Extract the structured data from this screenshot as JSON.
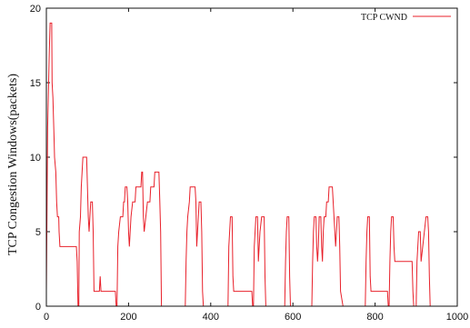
{
  "chart_data": {
    "type": "line",
    "title": "",
    "xlabel": "",
    "ylabel": "TCP Congestion Windows(packets)",
    "xlim": [
      0,
      1000
    ],
    "ylim": [
      0,
      20
    ],
    "x_ticks": [
      "0",
      "200",
      "400",
      "600",
      "800",
      "1000"
    ],
    "y_ticks": [
      "0",
      "5",
      "10",
      "15",
      "20"
    ],
    "grid": false,
    "legend_position": "top-right",
    "series": [
      {
        "name": "TCP CWND",
        "color": "#e8202a",
        "points": [
          [
            0,
            1
          ],
          [
            3,
            12
          ],
          [
            7,
            17
          ],
          [
            9,
            19
          ],
          [
            13,
            19
          ],
          [
            14,
            15
          ],
          [
            16,
            14
          ],
          [
            19,
            11
          ],
          [
            20,
            10
          ],
          [
            23,
            9
          ],
          [
            25,
            7
          ],
          [
            27,
            6
          ],
          [
            30,
            6
          ],
          [
            31,
            5
          ],
          [
            33,
            4
          ],
          [
            73,
            4
          ],
          [
            75,
            3
          ],
          [
            77,
            0
          ],
          [
            79,
            0
          ],
          [
            80,
            5
          ],
          [
            83,
            6
          ],
          [
            85,
            8
          ],
          [
            87,
            9
          ],
          [
            89,
            10
          ],
          [
            98,
            10
          ],
          [
            100,
            8
          ],
          [
            102,
            6
          ],
          [
            104,
            5
          ],
          [
            106,
            6
          ],
          [
            108,
            7
          ],
          [
            112,
            7
          ],
          [
            114,
            5
          ],
          [
            116,
            1
          ],
          [
            129,
            1
          ],
          [
            131,
            2
          ],
          [
            133,
            1
          ],
          [
            168,
            1
          ],
          [
            170,
            0
          ],
          [
            172,
            0
          ],
          [
            174,
            4
          ],
          [
            176,
            5
          ],
          [
            180,
            6
          ],
          [
            186,
            6
          ],
          [
            188,
            7
          ],
          [
            190,
            7
          ],
          [
            192,
            8
          ],
          [
            196,
            8
          ],
          [
            198,
            7
          ],
          [
            200,
            5
          ],
          [
            202,
            4
          ],
          [
            204,
            5
          ],
          [
            206,
            6
          ],
          [
            210,
            7
          ],
          [
            216,
            7
          ],
          [
            218,
            8
          ],
          [
            230,
            8
          ],
          [
            232,
            9
          ],
          [
            234,
            9
          ],
          [
            236,
            6
          ],
          [
            238,
            5
          ],
          [
            242,
            6
          ],
          [
            246,
            7
          ],
          [
            252,
            7
          ],
          [
            254,
            8
          ],
          [
            262,
            8
          ],
          [
            264,
            9
          ],
          [
            274,
            9
          ],
          [
            276,
            7
          ],
          [
            278,
            5
          ],
          [
            280,
            0
          ],
          [
            338,
            0
          ],
          [
            340,
            3
          ],
          [
            342,
            5
          ],
          [
            344,
            6
          ],
          [
            348,
            7
          ],
          [
            350,
            8
          ],
          [
            362,
            8
          ],
          [
            364,
            7
          ],
          [
            366,
            4
          ],
          [
            368,
            5
          ],
          [
            370,
            6
          ],
          [
            372,
            7
          ],
          [
            376,
            7
          ],
          [
            378,
            5
          ],
          [
            380,
            1
          ],
          [
            382,
            0
          ],
          [
            442,
            0
          ],
          [
            444,
            4
          ],
          [
            446,
            5
          ],
          [
            448,
            6
          ],
          [
            452,
            6
          ],
          [
            454,
            2
          ],
          [
            456,
            1
          ],
          [
            500,
            1
          ],
          [
            502,
            0
          ],
          [
            504,
            0
          ],
          [
            506,
            4
          ],
          [
            508,
            5
          ],
          [
            510,
            6
          ],
          [
            514,
            6
          ],
          [
            516,
            3
          ],
          [
            518,
            4
          ],
          [
            520,
            5
          ],
          [
            524,
            6
          ],
          [
            530,
            6
          ],
          [
            532,
            2
          ],
          [
            534,
            0
          ],
          [
            580,
            0
          ],
          [
            582,
            3
          ],
          [
            584,
            5
          ],
          [
            586,
            6
          ],
          [
            590,
            6
          ],
          [
            592,
            2
          ],
          [
            594,
            0
          ],
          [
            646,
            0
          ],
          [
            648,
            3
          ],
          [
            650,
            5
          ],
          [
            652,
            6
          ],
          [
            656,
            6
          ],
          [
            658,
            4
          ],
          [
            660,
            3
          ],
          [
            662,
            4
          ],
          [
            664,
            6
          ],
          [
            668,
            6
          ],
          [
            670,
            4
          ],
          [
            672,
            3
          ],
          [
            674,
            5
          ],
          [
            676,
            6
          ],
          [
            680,
            6
          ],
          [
            682,
            7
          ],
          [
            686,
            7
          ],
          [
            688,
            8
          ],
          [
            696,
            8
          ],
          [
            698,
            7
          ],
          [
            700,
            6
          ],
          [
            702,
            5
          ],
          [
            704,
            4
          ],
          [
            706,
            5
          ],
          [
            708,
            6
          ],
          [
            712,
            6
          ],
          [
            714,
            4
          ],
          [
            716,
            1
          ],
          [
            722,
            0
          ],
          [
            776,
            0
          ],
          [
            778,
            3
          ],
          [
            780,
            5
          ],
          [
            782,
            6
          ],
          [
            786,
            6
          ],
          [
            788,
            2
          ],
          [
            790,
            1
          ],
          [
            830,
            1
          ],
          [
            832,
            0
          ],
          [
            834,
            0
          ],
          [
            836,
            3
          ],
          [
            838,
            5
          ],
          [
            840,
            6
          ],
          [
            844,
            6
          ],
          [
            846,
            4
          ],
          [
            848,
            3
          ],
          [
            890,
            3
          ],
          [
            892,
            1
          ],
          [
            894,
            0
          ],
          [
            900,
            0
          ],
          [
            902,
            3
          ],
          [
            904,
            4
          ],
          [
            906,
            5
          ],
          [
            910,
            5
          ],
          [
            912,
            3
          ],
          [
            916,
            4
          ],
          [
            920,
            5
          ],
          [
            924,
            6
          ],
          [
            928,
            6
          ],
          [
            930,
            5
          ],
          [
            932,
            2
          ],
          [
            934,
            0
          ],
          [
            998,
            0
          ]
        ]
      }
    ]
  }
}
